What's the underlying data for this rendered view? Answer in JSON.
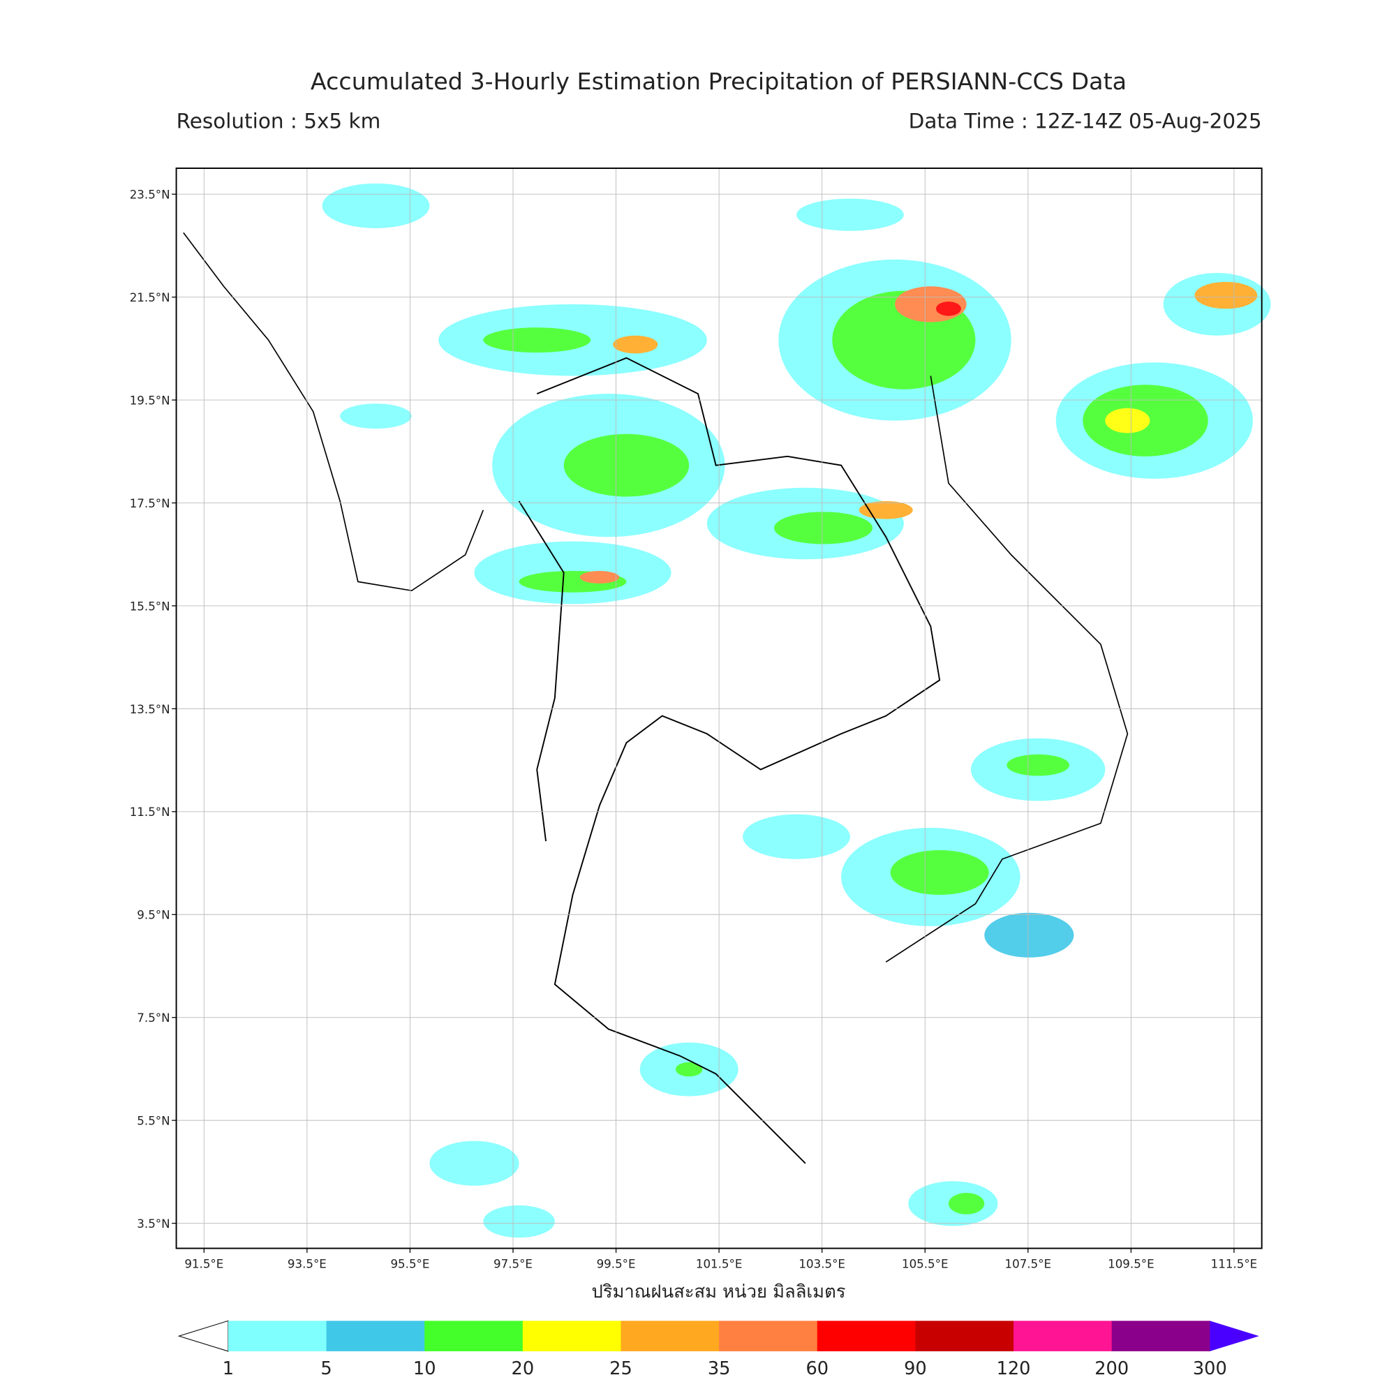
{
  "map": {
    "title": "Accumulated 3-Hourly Estimation Precipitation of PERSIANN-CCS Data",
    "subtitle_left": "Resolution : 5x5 km",
    "subtitle_right": "Data Time : 12Z-14Z 05-Aug-2025",
    "lon_labels": [
      "91.5°E",
      "93.5°E",
      "95.5°E",
      "97.5°E",
      "99.5°E",
      "101.5°E",
      "103.5°E",
      "105.5°E",
      "107.5°E",
      "109.5°E",
      "111.5°E"
    ],
    "lat_labels": [
      "23.5°N",
      "21.5°N",
      "19.5°N",
      "17.5°N",
      "15.5°N",
      "13.5°N",
      "11.5°N",
      "9.5°N",
      "7.5°N",
      "5.5°N",
      "3.5°N"
    ],
    "colorbar_label": "ปริมาณฝนสะสม หน่วย มิลลิเมตร",
    "colorbar": {
      "bounds": [
        1,
        5,
        10,
        20,
        25,
        35,
        60,
        90,
        120,
        200,
        300
      ],
      "colors": [
        "#80ffff",
        "#40c8e8",
        "#44ff2a",
        "#ffff00",
        "#ffa820",
        "#ff8040",
        "#ff0000",
        "#c80000",
        "#ff1493",
        "#8b008b"
      ],
      "under_color": "#ffffff",
      "over_color": "#4a00ff"
    }
  }
}
